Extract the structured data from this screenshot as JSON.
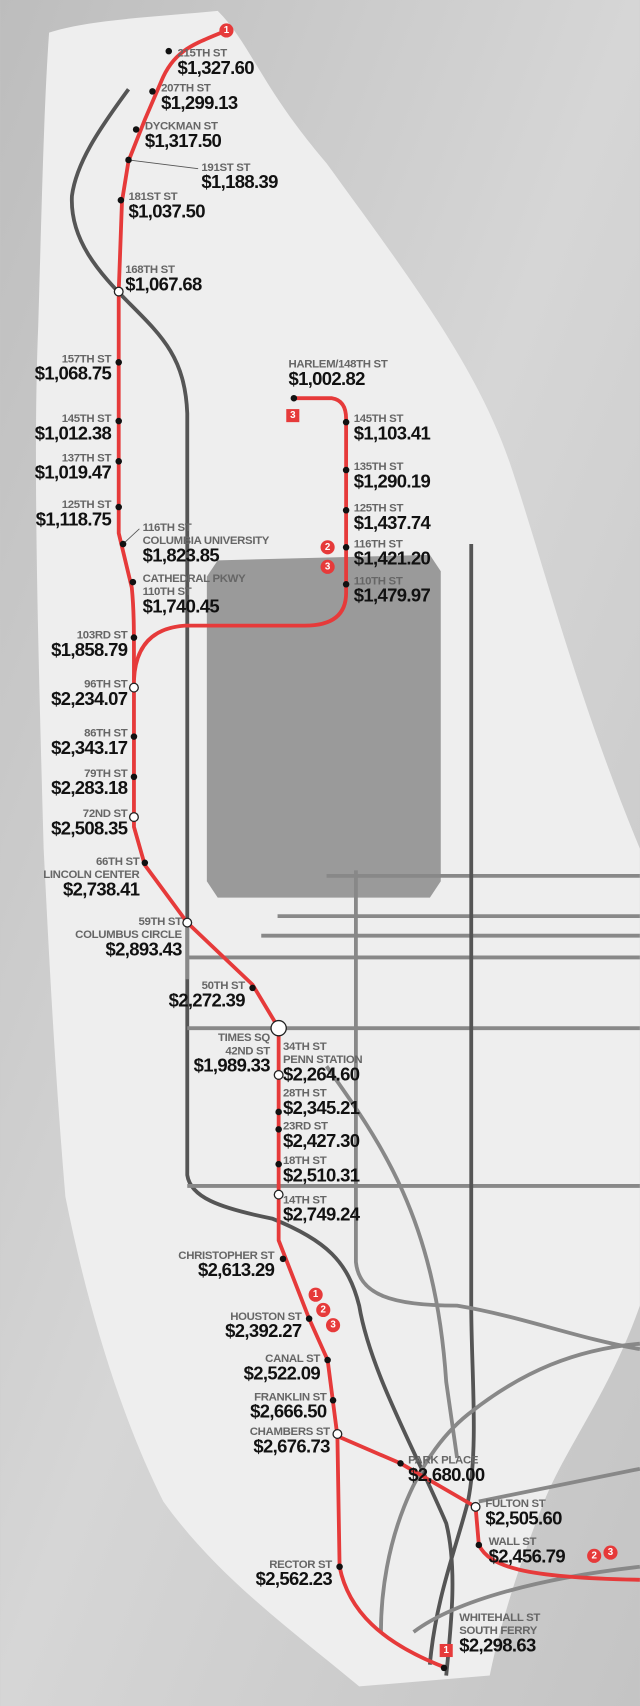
{
  "stations": [
    {
      "name": [
        "215TH ST"
      ],
      "price": "$1,327.60"
    },
    {
      "name": [
        "207TH ST"
      ],
      "price": "$1,299.13"
    },
    {
      "name": [
        "DYCKMAN ST"
      ],
      "price": "$1,317.50"
    },
    {
      "name": [
        "191ST ST"
      ],
      "price": "$1,188.39"
    },
    {
      "name": [
        "181ST ST"
      ],
      "price": "$1,037.50"
    },
    {
      "name": [
        "168TH ST"
      ],
      "price": "$1,067.68"
    },
    {
      "name": [
        "157TH ST"
      ],
      "price": "$1,068.75"
    },
    {
      "name": [
        "145TH ST"
      ],
      "price": "$1,012.38"
    },
    {
      "name": [
        "137TH ST"
      ],
      "price": "$1,019.47"
    },
    {
      "name": [
        "125TH ST"
      ],
      "price": "$1,118.75"
    },
    {
      "name": [
        "116TH ST",
        "COLUMBIA UNIVERSITY"
      ],
      "price": "$1,823.85"
    },
    {
      "name": [
        "CATHEDRAL PKWY",
        "110TH ST"
      ],
      "price": "$1,740.45"
    },
    {
      "name": [
        "103RD ST"
      ],
      "price": "$1,858.79"
    },
    {
      "name": [
        "96TH ST"
      ],
      "price": "$2,234.07"
    },
    {
      "name": [
        "86TH ST"
      ],
      "price": "$2,343.17"
    },
    {
      "name": [
        "79TH ST"
      ],
      "price": "$2,283.18"
    },
    {
      "name": [
        "72ND ST"
      ],
      "price": "$2,508.35"
    },
    {
      "name": [
        "66TH ST",
        "LINCOLN CENTER"
      ],
      "price": "$2,738.41"
    },
    {
      "name": [
        "59TH ST",
        "COLUMBUS CIRCLE"
      ],
      "price": "$2,893.43"
    },
    {
      "name": [
        "50TH ST"
      ],
      "price": "$2,272.39"
    },
    {
      "name": [
        "TIMES SQ",
        "42ND ST"
      ],
      "price": "$1,989.33"
    },
    {
      "name": [
        "34TH ST",
        "PENN STATION"
      ],
      "price": "$2,264.60"
    },
    {
      "name": [
        "28TH ST"
      ],
      "price": "$2,345.21"
    },
    {
      "name": [
        "23RD ST"
      ],
      "price": "$2,427.30"
    },
    {
      "name": [
        "18TH ST"
      ],
      "price": "$2,510.31"
    },
    {
      "name": [
        "14TH ST"
      ],
      "price": "$2,749.24"
    },
    {
      "name": [
        "CHRISTOPHER ST"
      ],
      "price": "$2,613.29"
    },
    {
      "name": [
        "HOUSTON ST"
      ],
      "price": "$2,392.27"
    },
    {
      "name": [
        "CANAL ST"
      ],
      "price": "$2,522.09"
    },
    {
      "name": [
        "FRANKLIN ST"
      ],
      "price": "$2,666.50"
    },
    {
      "name": [
        "CHAMBERS ST"
      ],
      "price": "$2,676.73"
    },
    {
      "name": [
        "RECTOR ST"
      ],
      "price": "$2,562.23"
    },
    {
      "name": [
        "WHITEHALL ST",
        "SOUTH FERRY"
      ],
      "price": "$2,298.63"
    },
    {
      "name": [
        "HARLEM/148TH ST"
      ],
      "price": "$1,002.82"
    },
    {
      "name": [
        "145TH ST"
      ],
      "price": "$1,103.41"
    },
    {
      "name": [
        "135TH ST"
      ],
      "price": "$1,290.19"
    },
    {
      "name": [
        "125TH ST"
      ],
      "price": "$1,437.74"
    },
    {
      "name": [
        "116TH ST"
      ],
      "price": "$1,421.20"
    },
    {
      "name": [
        "110TH ST"
      ],
      "price": "$1,479.97"
    },
    {
      "name": [
        "PARK PLACE"
      ],
      "price": "$2,680.00"
    },
    {
      "name": [
        "FULTON ST"
      ],
      "price": "$2,505.60"
    },
    {
      "name": [
        "WALL ST"
      ],
      "price": "$2,456.79"
    }
  ],
  "badges": [
    "1",
    "3",
    "2",
    "3",
    "1",
    "2",
    "3",
    "2",
    "3",
    "1"
  ]
}
